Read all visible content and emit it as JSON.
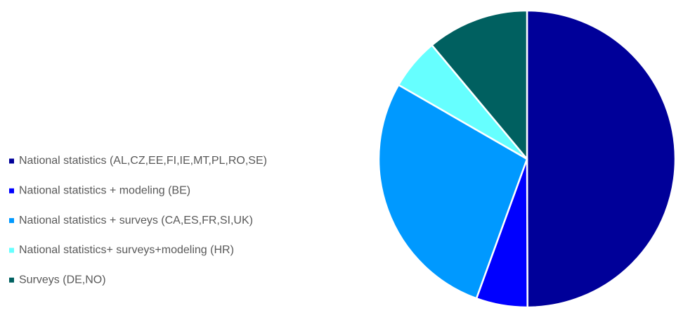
{
  "chart_data": {
    "type": "pie",
    "categories": [
      "National statistics (AL,CZ,EE,FI,IE,MT,PL,RO,SE)",
      "National statistics + modeling (BE)",
      "National statistics + surveys (CA,ES,FR,SI,UK)",
      "National statistics+ surveys+modeling (HR)",
      "Surveys (DE,NO)"
    ],
    "values": [
      50,
      5.6,
      27.8,
      5.6,
      11.1
    ],
    "colors": [
      "#000099",
      "#0000ff",
      "#0099ff",
      "#66ffff",
      "#006060"
    ],
    "legend": "left"
  }
}
